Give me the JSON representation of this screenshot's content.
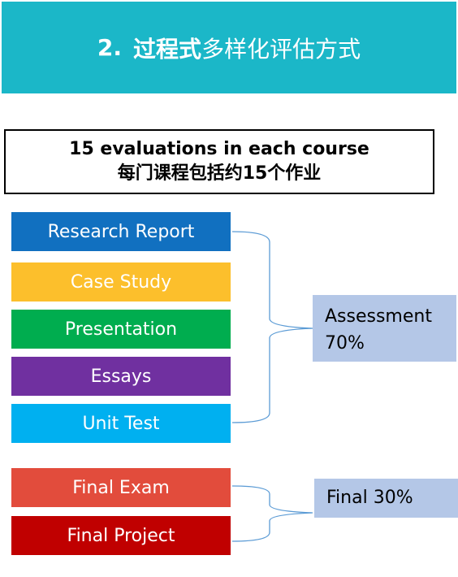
{
  "header": {
    "number": "2.",
    "title_bold": "过程式",
    "title_rest": "多样化评估方式",
    "bg_color": "#1bb7c8"
  },
  "summary": {
    "line1": "15 evaluations in each course",
    "line2": "每门课程包括约15个作业"
  },
  "assessment_group": {
    "items": [
      {
        "label": "Research Report",
        "color": "#1170c0"
      },
      {
        "label": "Case Study",
        "color": "#fcbf2c"
      },
      {
        "label": "Presentation",
        "color": "#00ad4f"
      },
      {
        "label": "Essays",
        "color": "#7030a0"
      },
      {
        "label": "Unit Test",
        "color": "#00b0f0"
      }
    ],
    "result_line1": "Assessment",
    "result_line2": "70%"
  },
  "final_group": {
    "items": [
      {
        "label": "Final Exam",
        "color": "#e24c3c"
      },
      {
        "label": "Final Project",
        "color": "#c00000"
      }
    ],
    "result": "Final 30%"
  },
  "result_box_color": "#b4c7e7",
  "brace_color": "#5b9bd5"
}
